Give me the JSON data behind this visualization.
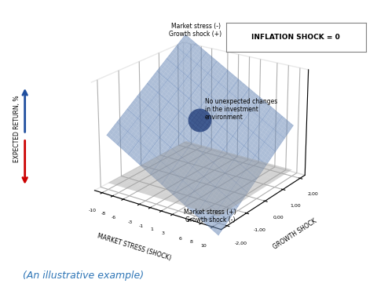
{
  "title": "(An illustrative example)",
  "inflation_box_text": "INFLATION SHOCK = 0",
  "xlabel": "MARKET STRESS (SHOCK)",
  "ylabel": "GROWTH SHOCK",
  "zlabel": "EXPECTED RETURN, %",
  "market_stress_ticks": [
    -10,
    -8,
    -6,
    -3,
    -1,
    1,
    3,
    6,
    8,
    10
  ],
  "growth_shock_ticks": [
    -2.0,
    -1.0,
    0.0,
    1.0,
    2.0
  ],
  "surface_color": "#7b9fd4",
  "surface_alpha": 0.55,
  "floor_color": "#d0d0d0",
  "floor_alpha": 0.45,
  "dot_color": "#0d1f5c",
  "dot_text": "No unexpected changes\nin the investment\nenvironment",
  "annotation_top_left": "Market stress (-)\nGrowth shock (+)",
  "annotation_bottom_right": "Market stress (+)\nGrowth shock (-)",
  "background_color": "#ffffff",
  "elev": 22,
  "azim": -55,
  "arrow_up_color": "#1f4e9e",
  "arrow_down_color": "#cc0000",
  "title_color": "#2e75b6"
}
